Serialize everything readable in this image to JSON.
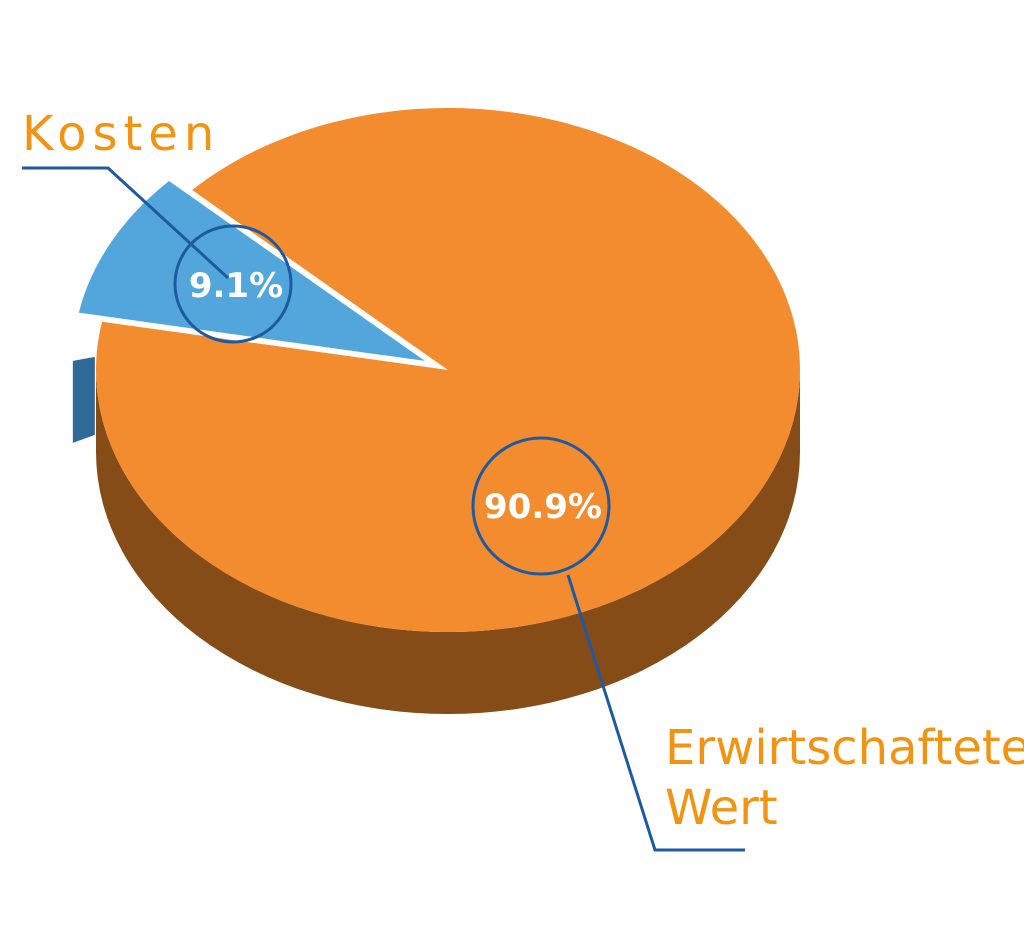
{
  "chart_data": {
    "type": "pie",
    "title": "",
    "slices": [
      {
        "name": "Kosten",
        "value": 9.1,
        "value_label": "9.1%",
        "color": "#52a6dc",
        "side_color": "#2e6a99"
      },
      {
        "name_lines": [
          "Erwirtschafteter",
          "Wert"
        ],
        "value": 90.9,
        "value_label": "90.9%",
        "color": "#f28c2f",
        "side_color": "#854c17"
      }
    ],
    "label_color": "#f29413",
    "leader_color": "#1f5aa0",
    "style": "3d",
    "legend": "none"
  }
}
